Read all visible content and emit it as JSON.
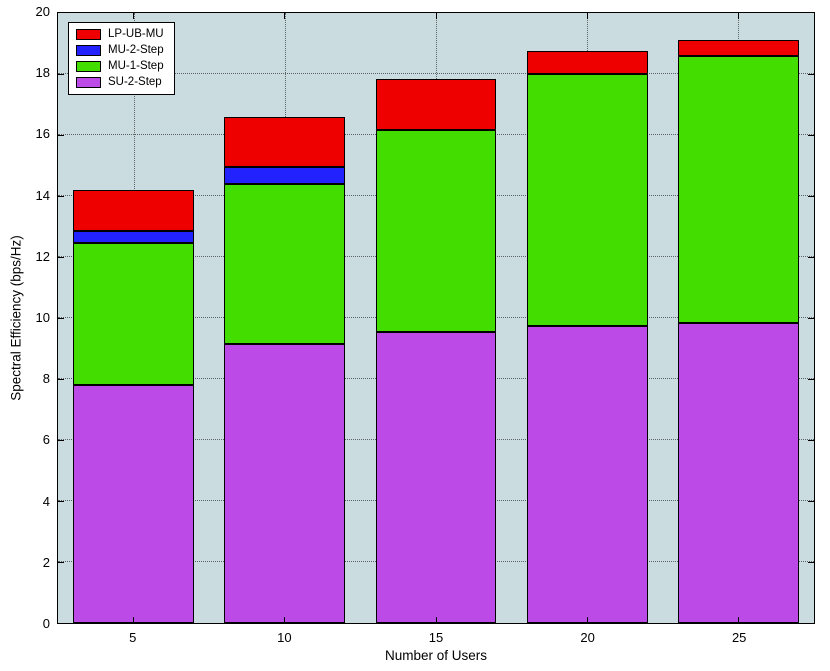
{
  "chart_data": {
    "type": "stacked-bar",
    "title": "",
    "xlabel": "Number of Users",
    "ylabel": "Spectral Efficiency (bps/Hz)",
    "categories": [
      5,
      10,
      15,
      20,
      25
    ],
    "ylim": [
      0,
      20
    ],
    "yticks": [
      0,
      2,
      4,
      6,
      8,
      10,
      12,
      14,
      16,
      18,
      20
    ],
    "grid": true,
    "plot_bg": "#cbdce1",
    "bar_width_fraction": 0.8,
    "legend_position": "top-left",
    "legend_order": [
      "LP-UB-MU",
      "MU-2-Step",
      "MU-1-Step",
      "SU-2-Step"
    ],
    "series": [
      {
        "name": "SU-2-Step",
        "color": "#bb4ae6",
        "tops": [
          7.8,
          9.15,
          9.55,
          9.75,
          9.85
        ]
      },
      {
        "name": "MU-1-Step",
        "color": "#44dd00",
        "tops": [
          12.45,
          14.4,
          16.15,
          18.0,
          18.6
        ]
      },
      {
        "name": "MU-2-Step",
        "color": "#2222ff",
        "tops": [
          12.85,
          14.95,
          16.15,
          18.0,
          18.6
        ]
      },
      {
        "name": "LP-UB-MU",
        "color": "#ee0000",
        "tops": [
          14.2,
          16.6,
          17.85,
          18.75,
          19.1
        ]
      }
    ]
  }
}
